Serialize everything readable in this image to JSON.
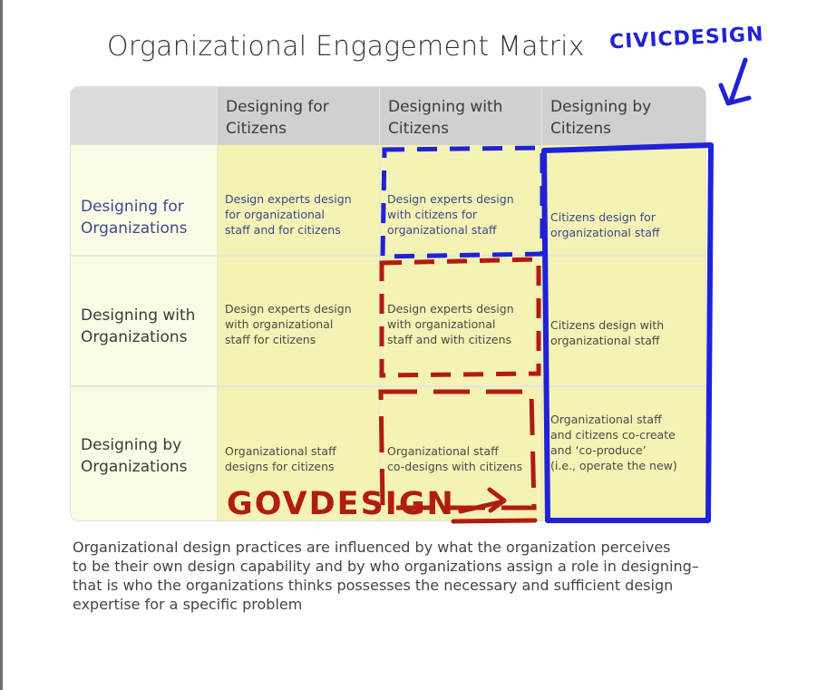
{
  "title": "Organizational Engagement Matrix",
  "columns": [
    "Designing for\nCitizens",
    "Designing with\nCitizens",
    "Designing by\nCitizens"
  ],
  "rows": [
    {
      "label": "Designing for\nOrganizations",
      "cells": [
        "Design experts design\nfor organizational\nstaff and for citizens",
        "Design experts design\nwith citizens for\norganizational staff",
        "Citizens design for\norganizational staff"
      ]
    },
    {
      "label": "Designing with\nOrganizations",
      "cells": [
        "Design experts design\nwith organizational\nstaff for citizens",
        "Design experts design\nwith organizational\nstaff and with citizens",
        "Citizens design with\norganizational staff"
      ]
    },
    {
      "label": "Designing by\nOrganizations",
      "cells": [
        "Organizational staff\ndesigns for citizens",
        "Organizational staff\nco-designs with citizens",
        "Organizational staff\nand citizens co-create\nand ‘co-produce’\n(i.e., operate the new)"
      ]
    }
  ],
  "caption": "Organizational design practices are influenced by what the organization perceives\nto be their own design capability and by who organizations assign a role in designing–\nthat is who the organizations thinks possesses the necessary and sufficient design\nexpertise for a specific problem",
  "annotations": {
    "civic": "CIVICDESIGN",
    "gov": "GOVDESIGN"
  },
  "colors": {
    "header": "#d0d0d0",
    "cell_bg": "#f4f2b4",
    "row_label_bg": "#fbfbe6",
    "blue_text": "#3a4a8a",
    "marker_blue": "#1f22d8",
    "marker_red": "#b01c12"
  }
}
